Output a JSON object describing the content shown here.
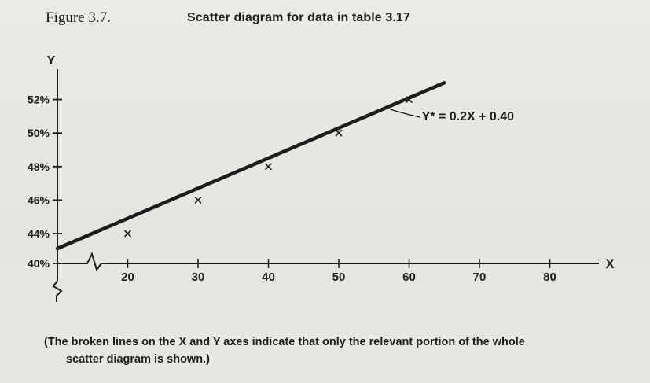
{
  "figure": {
    "label": "Figure 3.7.",
    "title": "Scatter diagram for data in table 3.17"
  },
  "caption": {
    "line1": "(The broken lines on the X and Y axes indicate that only the relevant portion of the whole",
    "line2": "scatter diagram is shown.)"
  },
  "colors": {
    "ink": "#1c1c1c",
    "paper": "#e9e7e2"
  },
  "chart_data": {
    "type": "scatter",
    "xlabel": "X",
    "ylabel": "Y",
    "x_ticks": [
      20,
      30,
      40,
      50,
      60,
      70,
      80
    ],
    "y_ticks": [
      40,
      44,
      46,
      48,
      50,
      52
    ],
    "y_tick_labels": [
      "40%",
      "44%",
      "46%",
      "48%",
      "50%",
      "52%"
    ],
    "xlim": [
      10,
      85
    ],
    "ylim": [
      40,
      54
    ],
    "axis_breaks": {
      "x": true,
      "y": true
    },
    "points": [
      {
        "x": 20,
        "y": 44
      },
      {
        "x": 30,
        "y": 46
      },
      {
        "x": 40,
        "y": 48
      },
      {
        "x": 50,
        "y": 50
      },
      {
        "x": 60,
        "y": 52
      }
    ],
    "fit_line": {
      "slope": 0.2,
      "intercept": 40,
      "x_range": [
        10,
        65
      ],
      "label": "Y* = 0.2X + 0.40"
    },
    "grid": false
  }
}
